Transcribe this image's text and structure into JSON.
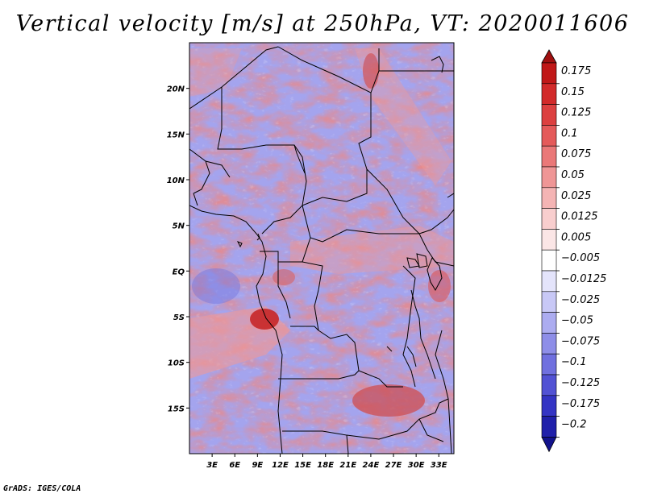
{
  "title": "Vertical velocity [m/s] at 250hPa, VT: 2020011606",
  "credit": "GrADS: IGES/COLA",
  "map": {
    "lon_range": [
      0,
      35
    ],
    "lat_range": [
      -20,
      25
    ],
    "lon_ticks": [
      {
        "value": 3,
        "label": "3E"
      },
      {
        "value": 6,
        "label": "6E"
      },
      {
        "value": 9,
        "label": "9E"
      },
      {
        "value": 12,
        "label": "12E"
      },
      {
        "value": 15,
        "label": "15E"
      },
      {
        "value": 18,
        "label": "18E"
      },
      {
        "value": 21,
        "label": "21E"
      },
      {
        "value": 24,
        "label": "24E"
      },
      {
        "value": 27,
        "label": "27E"
      },
      {
        "value": 30,
        "label": "30E"
      },
      {
        "value": 33,
        "label": "33E"
      }
    ],
    "lat_ticks": [
      {
        "value": 20,
        "label": "20N"
      },
      {
        "value": 15,
        "label": "15N"
      },
      {
        "value": 10,
        "label": "10N"
      },
      {
        "value": 5,
        "label": "5N"
      },
      {
        "value": 0,
        "label": "EQ"
      },
      {
        "value": -5,
        "label": "5S"
      },
      {
        "value": -10,
        "label": "10S"
      },
      {
        "value": -15,
        "label": "15S"
      }
    ]
  },
  "colorbar": {
    "levels": [
      {
        "label": "0.175",
        "color": "#c01818"
      },
      {
        "label": "0.15",
        "color": "#d22a2a"
      },
      {
        "label": "0.125",
        "color": "#dc4040"
      },
      {
        "label": "0.1",
        "color": "#e45a5a"
      },
      {
        "label": "0.075",
        "color": "#ea7878"
      },
      {
        "label": "0.05",
        "color": "#ef9696"
      },
      {
        "label": "0.025",
        "color": "#f4b4b4"
      },
      {
        "label": "0.0125",
        "color": "#f8cece"
      },
      {
        "label": "0.005",
        "color": "#fbe6e6"
      },
      {
        "label": "−0.005",
        "color": "#ffffff"
      },
      {
        "label": "−0.0125",
        "color": "#e4e4fb"
      },
      {
        "label": "−0.025",
        "color": "#c8c8f6"
      },
      {
        "label": "−0.05",
        "color": "#acacf0"
      },
      {
        "label": "−0.075",
        "color": "#8e8ee8"
      },
      {
        "label": "−0.1",
        "color": "#7070df"
      },
      {
        "label": "−0.125",
        "color": "#5252d4"
      },
      {
        "label": "−0.175",
        "color": "#3434c4"
      },
      {
        "label": "−0.2",
        "color": "#2020aa"
      }
    ],
    "top_color": "#a01010",
    "bottom_color": "#12128c"
  }
}
